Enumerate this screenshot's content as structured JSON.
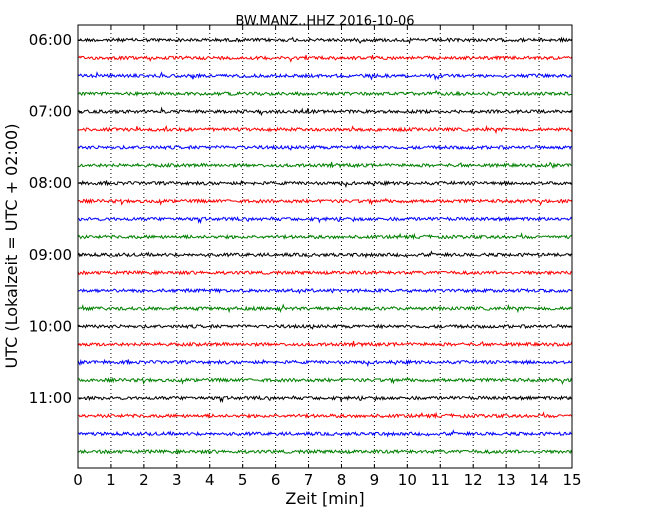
{
  "chart_data": {
    "type": "line",
    "title": "BW.MANZ..HHZ 2016-10-06",
    "xlabel": "Zeit  [min]",
    "ylabel": "UTC (Lokalzeit = UTC + 02:00)",
    "xlim": [
      0,
      15
    ],
    "x_ticks": [
      "0",
      "1",
      "2",
      "3",
      "4",
      "5",
      "6",
      "7",
      "8",
      "9",
      "10",
      "11",
      "12",
      "13",
      "14",
      "15"
    ],
    "y_ticks": [
      {
        "label": "06:00",
        "trace": 0
      },
      {
        "label": "07:00",
        "trace": 4
      },
      {
        "label": "08:00",
        "trace": 8
      },
      {
        "label": "09:00",
        "trace": 12
      },
      {
        "label": "10:00",
        "trace": 16
      },
      {
        "label": "11:00",
        "trace": 20
      }
    ],
    "grid": {
      "vertical": true,
      "style": "dotted"
    },
    "trace_start_times": [
      "06:00",
      "06:15",
      "06:30",
      "06:45",
      "07:00",
      "07:15",
      "07:30",
      "07:45",
      "08:00",
      "08:15",
      "08:30",
      "08:45",
      "09:00",
      "09:15",
      "09:30",
      "09:45",
      "10:00",
      "10:15",
      "10:30",
      "10:45",
      "11:00",
      "11:15",
      "11:30",
      "11:45"
    ],
    "trace_minutes": 15,
    "trace_color_cycle": [
      "#000000",
      "#ff0000",
      "#0000ff",
      "#008000"
    ]
  }
}
